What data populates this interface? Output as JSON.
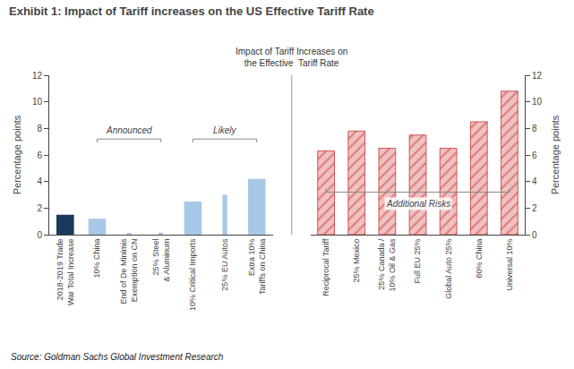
{
  "title": "Exhibit 1: Impact of Tariff increases on the US Effective Tariff Rate",
  "subtitle": "Impact of Tariff Increases on\nthe Effective  Tariff Rate",
  "source": "Source: Goldman Sachs Global Investment Research",
  "chart_data": [
    {
      "type": "bar",
      "ylabel": "Percentage points",
      "categories": [
        "2018-2019 Trade\nWar Total Increase",
        "10% China",
        "End of De Minimis\nExemption on CN",
        "25% Steel\n& Aluminum",
        "10% Critical Imports",
        "25% EU Autos",
        "Extra 10%\nTariffs on China"
      ],
      "series": [
        {
          "color": "#1a3a5c",
          "values": [
            1.5,
            null,
            null,
            null,
            null,
            null,
            null
          ]
        },
        {
          "color": "#a8c8e8",
          "values": [
            null,
            1.2,
            null,
            null,
            2.5,
            null,
            4.2
          ]
        },
        {
          "color": "#a8c8e8",
          "line_style": "dashed",
          "values": [
            null,
            null,
            0.1,
            0.15,
            null,
            3.0,
            null
          ]
        }
      ],
      "ylim": [
        0,
        12
      ],
      "yticks": [
        0,
        2,
        4,
        6,
        8,
        10,
        12
      ],
      "grid": false,
      "annotations": [
        {
          "text": "Announced",
          "from": "10% China",
          "to": "25% Steel\n& Aluminum",
          "y": 7.2,
          "side": "above"
        },
        {
          "text": "Likely",
          "from": "10% Critical Imports",
          "to": "Extra 10%\nTariffs on China",
          "y": 7.2,
          "side": "above"
        }
      ]
    },
    {
      "type": "bar",
      "ylabel": "Percentage points",
      "categories": [
        "Reciprocal Tariff",
        "25% Mexico",
        "25% Canada /\n10% Oil & Gas",
        "Full EU 25%",
        "Global Auto 25%",
        "60% China",
        "Universal 10%"
      ],
      "values": [
        6.3,
        7.8,
        6.5,
        7.5,
        6.5,
        8.5,
        10.8
      ],
      "color": "#cc3333",
      "marker": "hatched",
      "ylim": [
        0,
        12
      ],
      "yticks": [
        0,
        2,
        4,
        6,
        8,
        10,
        12
      ],
      "grid": false,
      "annotations": [
        {
          "text": "Additional Risks",
          "from": "Reciprocal Tariff",
          "to": "Universal 10%",
          "y": 3.2,
          "side": "below"
        }
      ]
    }
  ]
}
